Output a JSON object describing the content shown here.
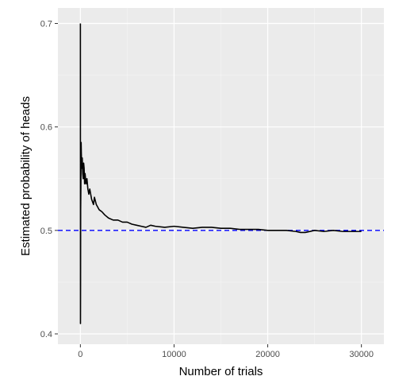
{
  "chart_data": {
    "type": "line",
    "title": "",
    "xlabel": "Number of trials",
    "ylabel": "Estimated probability of heads",
    "xlim": [
      -2400,
      32400
    ],
    "ylim": [
      0.39,
      0.715
    ],
    "x_ticks": [
      0,
      10000,
      20000,
      30000
    ],
    "x_tick_labels": [
      "0",
      "10000",
      "20000",
      "30000"
    ],
    "y_ticks": [
      0.4,
      0.5,
      0.6,
      0.7
    ],
    "y_tick_labels": [
      "0.4",
      "0.5",
      "0.6",
      "0.7"
    ],
    "grid": true,
    "legend": "none",
    "series": [
      {
        "color": "#000000",
        "x": [
          1,
          10,
          20,
          30,
          50,
          80,
          100,
          150,
          200,
          250,
          300,
          350,
          400,
          450,
          500,
          600,
          700,
          800,
          900,
          1000,
          1200,
          1400,
          1500,
          1700,
          2000,
          2300,
          2600,
          3000,
          3500,
          4000,
          4500,
          5000,
          5500,
          6000,
          6500,
          7000,
          7500,
          8000,
          9000,
          10000,
          11000,
          12000,
          13000,
          14000,
          15000,
          16000,
          17000,
          18000,
          19000,
          20000,
          21000,
          22000,
          23000,
          23500,
          24000,
          25000,
          26000,
          27000,
          28000,
          29000,
          30000
        ],
        "y": [
          0.7,
          0.41,
          0.45,
          0.52,
          0.54,
          0.585,
          0.575,
          0.56,
          0.57,
          0.555,
          0.55,
          0.565,
          0.56,
          0.545,
          0.555,
          0.545,
          0.55,
          0.54,
          0.535,
          0.54,
          0.53,
          0.525,
          0.532,
          0.525,
          0.52,
          0.518,
          0.515,
          0.512,
          0.51,
          0.51,
          0.508,
          0.508,
          0.506,
          0.505,
          0.504,
          0.503,
          0.505,
          0.504,
          0.503,
          0.504,
          0.503,
          0.502,
          0.503,
          0.503,
          0.502,
          0.502,
          0.501,
          0.501,
          0.501,
          0.5,
          0.5,
          0.5,
          0.499,
          0.498,
          0.498,
          0.5,
          0.499,
          0.5,
          0.499,
          0.499,
          0.499
        ]
      }
    ],
    "reference_line": {
      "y": 0.5,
      "style": "dashed",
      "color": "#0000ff"
    }
  },
  "colors": {
    "panel_background": "#ebebeb",
    "grid_major": "#ffffff",
    "grid_minor": "#f5f5f5",
    "tick_text": "#4d4d4d",
    "axis_title": "#000000"
  }
}
